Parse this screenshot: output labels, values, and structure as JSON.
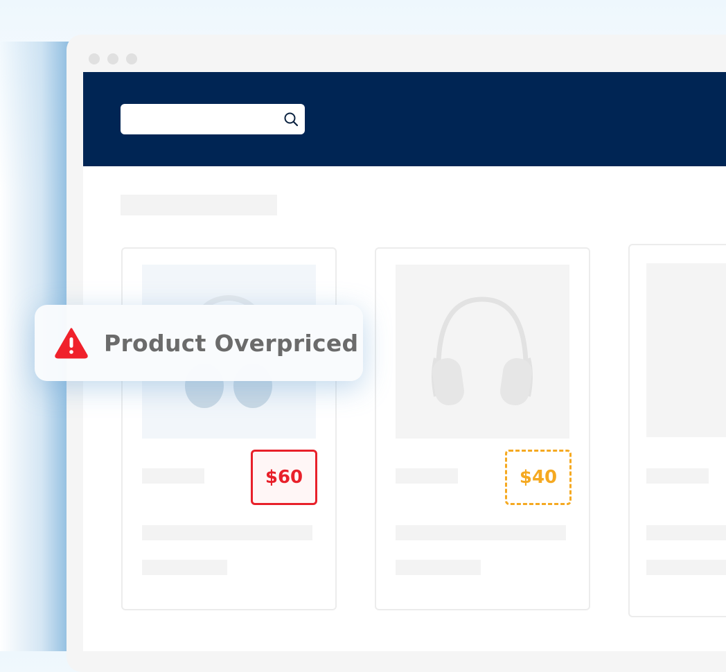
{
  "header": {
    "search": {
      "placeholder": "",
      "value": ""
    },
    "brand_color": "#002554"
  },
  "products": [
    {
      "price": "$60",
      "status": "overpriced",
      "price_color": "#e8202a"
    },
    {
      "price": "$40",
      "status": "warning",
      "price_color": "#f5a921"
    },
    {
      "price": ""
    }
  ],
  "alert": {
    "icon": "warning-triangle-icon",
    "text": "Product Overpriced",
    "icon_color": "#f0212b"
  }
}
